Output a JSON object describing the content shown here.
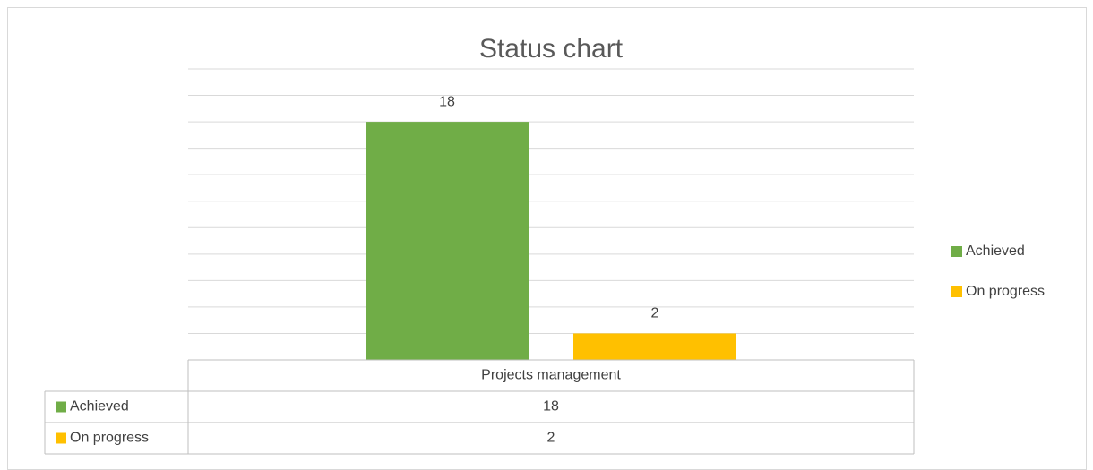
{
  "chart_data": {
    "type": "bar",
    "title": "Status chart",
    "categories": [
      "Projects  management"
    ],
    "series": [
      {
        "name": "Achieved",
        "color": "#70ad47",
        "values": [
          18
        ]
      },
      {
        "name": "On progress",
        "color": "#ffc000",
        "values": [
          2
        ]
      }
    ],
    "ylim": [
      0,
      22
    ],
    "yticks": [
      0,
      2,
      4,
      6,
      8,
      10,
      12,
      14,
      16,
      18,
      20,
      22
    ],
    "grid": true,
    "legend": "right",
    "data_table": true
  }
}
